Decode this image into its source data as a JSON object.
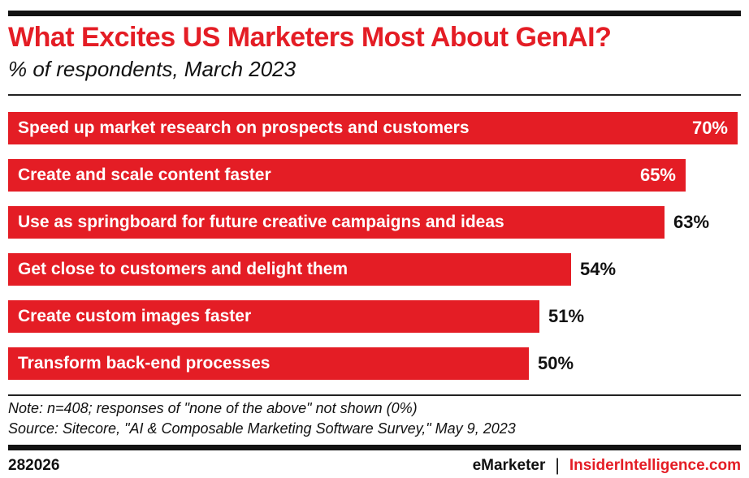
{
  "header": {
    "title": "What Excites US Marketers Most About GenAI?",
    "subtitle": "% of respondents, March 2023"
  },
  "chart_data": {
    "type": "bar",
    "orientation": "horizontal",
    "title": "What Excites US Marketers Most About GenAI?",
    "subtitle": "% of respondents, March 2023",
    "categories": [
      "Speed up market research on prospects and customers",
      "Create and scale content faster",
      "Use as springboard for future creative campaigns and ideas",
      "Get close to customers and delight them",
      "Create custom images faster",
      "Transform back-end processes"
    ],
    "values": [
      70,
      65,
      63,
      54,
      51,
      50
    ],
    "value_suffix": "%",
    "value_labels": [
      "70%",
      "65%",
      "63%",
      "54%",
      "51%",
      "50%"
    ],
    "label_position": [
      "inside",
      "inside",
      "outside",
      "outside",
      "outside",
      "outside"
    ],
    "xlim": [
      0,
      70
    ],
    "grid": false,
    "legend": false,
    "bar_color": "#e41d25"
  },
  "notes": {
    "note": "Note: n=408; responses of \"none of the above\" not shown (0%)",
    "source": "Source: Sitecore, \"AI & Composable Marketing Software Survey,\" May 9, 2023"
  },
  "footer": {
    "chart_id": "282026",
    "brand": "eMarketer",
    "separator": "|",
    "site": "InsiderIntelligence.com"
  },
  "colors": {
    "accent_red": "#e41d25",
    "text_black": "#111111",
    "rule_black": "#131313",
    "background": "#ffffff"
  }
}
